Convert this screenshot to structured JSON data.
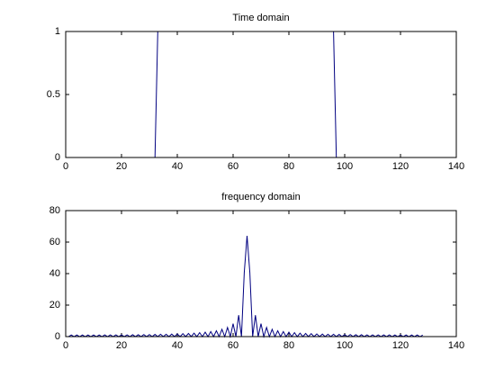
{
  "chart_data": [
    {
      "type": "line",
      "title": "Time domain",
      "color": "#000080",
      "x": [
        1,
        32,
        33,
        96,
        97,
        128
      ],
      "values": [
        0,
        0,
        1,
        1,
        0,
        0
      ],
      "xlim": [
        0,
        140
      ],
      "xticks": [
        0,
        20,
        40,
        60,
        80,
        100,
        120,
        140
      ],
      "ylim": [
        0,
        1
      ],
      "yticks": [
        0,
        0.5,
        1
      ]
    },
    {
      "type": "line",
      "title": "frequency domain",
      "color": "#000080",
      "x": [
        1,
        2,
        3,
        4,
        5,
        6,
        7,
        8,
        9,
        10,
        11,
        12,
        13,
        14,
        15,
        16,
        17,
        18,
        19,
        20,
        21,
        22,
        23,
        24,
        25,
        26,
        27,
        28,
        29,
        30,
        31,
        32,
        33,
        34,
        35,
        36,
        37,
        38,
        39,
        40,
        41,
        42,
        43,
        44,
        45,
        46,
        47,
        48,
        49,
        50,
        51,
        52,
        53,
        54,
        55,
        56,
        57,
        58,
        59,
        60,
        61,
        62,
        63,
        64,
        65,
        66,
        67,
        68,
        69,
        70,
        71,
        72,
        73,
        74,
        75,
        76,
        77,
        78,
        79,
        80,
        81,
        82,
        83,
        84,
        85,
        86,
        87,
        88,
        89,
        90,
        91,
        92,
        93,
        94,
        95,
        96,
        97,
        98,
        99,
        100,
        101,
        102,
        103,
        104,
        105,
        106,
        107,
        108,
        109,
        110,
        111,
        112,
        113,
        114,
        115,
        116,
        117,
        118,
        119,
        120,
        121,
        122,
        123,
        124,
        125,
        126,
        127,
        128
      ],
      "values": [
        0,
        1.0,
        0,
        1.0,
        0,
        1.0,
        0,
        1.0,
        0,
        1.0,
        0,
        1.0,
        0,
        1.1,
        0,
        1.1,
        0,
        1.1,
        0,
        1.1,
        0,
        1.1,
        0,
        1.2,
        0,
        1.2,
        0,
        1.3,
        0,
        1.3,
        0,
        1.4,
        0,
        1.5,
        0,
        1.5,
        0,
        1.6,
        0,
        1.7,
        0,
        1.9,
        0,
        2.0,
        0,
        2.2,
        0,
        2.5,
        0,
        2.8,
        0,
        3.2,
        0,
        3.7,
        0,
        4.6,
        0,
        5.8,
        0,
        8.2,
        0,
        13.6,
        0,
        40.7,
        64,
        40.7,
        0,
        13.6,
        0,
        8.2,
        0,
        5.8,
        0,
        4.6,
        0,
        3.7,
        0,
        3.2,
        0,
        2.8,
        0,
        2.5,
        0,
        2.2,
        0,
        2.0,
        0,
        1.9,
        0,
        1.7,
        0,
        1.6,
        0,
        1.5,
        0,
        1.5,
        0,
        1.4,
        0,
        1.3,
        0,
        1.3,
        0,
        1.2,
        0,
        1.2,
        0,
        1.1,
        0,
        1.1,
        0,
        1.1,
        0,
        1.1,
        0,
        1.1,
        0,
        1.0,
        0,
        1.0,
        0,
        1.0,
        0,
        1.0,
        0,
        1.0,
        0,
        1.0
      ],
      "xlim": [
        0,
        140
      ],
      "xticks": [
        0,
        20,
        40,
        60,
        80,
        100,
        120,
        140
      ],
      "ylim": [
        0,
        80
      ],
      "yticks": [
        0,
        20,
        40,
        60,
        80
      ]
    }
  ]
}
